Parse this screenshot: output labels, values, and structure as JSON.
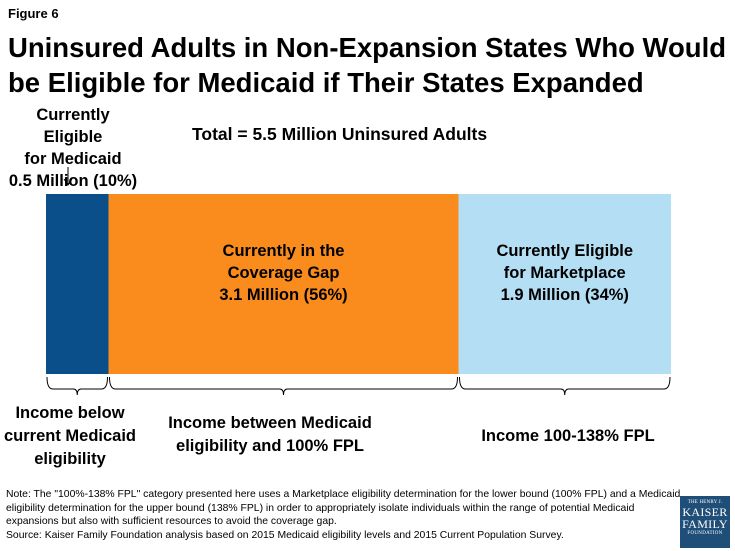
{
  "figure_label": "Figure 6",
  "title": "Uninsured Adults in Non-Expansion States Who Would be Eligible for Medicaid if Their States Expanded",
  "total_label": "Total = 5.5 Million Uninsured Adults",
  "annotation_left": [
    "Currently Eligible",
    "for Medicaid",
    "0.5 Million (10%)"
  ],
  "note": "Note: The \"100%-138% FPL\" category presented here uses a Marketplace eligibility determination for the lower bound (100% FPL) and a Medicaid eligibility determination for the upper bound (138% FPL) in order to appropriately isolate individuals within the range of potential Medicaid expansions but also with sufficient resources to avoid the coverage gap.",
  "source": "Source: Kaiser Family Foundation analysis based on 2015 Medicaid eligibility levels and 2015 Current Population Survey.",
  "logo": {
    "line1": "THE HENRY J.",
    "line2": "KAISER",
    "line3": "FAMILY",
    "line4": "FOUNDATION"
  },
  "chart_data": {
    "type": "bar",
    "orientation": "horizontal-stacked",
    "total_millions": 5.5,
    "segments": [
      {
        "key": "medicaid",
        "value_millions": 0.5,
        "percent": 10,
        "color": "#0b4f8a",
        "label_lines": [],
        "bracket_label_lines": [
          "Income below",
          "current Medicaid",
          "eligibility"
        ]
      },
      {
        "key": "gap",
        "value_millions": 3.1,
        "percent": 56,
        "color": "#f98c1c",
        "label_lines": [
          "Currently in the",
          "Coverage Gap",
          "3.1 Million (56%)"
        ],
        "bracket_label_lines": [
          "Income between Medicaid",
          "eligibility and 100% FPL"
        ]
      },
      {
        "key": "marketplace",
        "value_millions": 1.9,
        "percent": 34,
        "color": "#b4def3",
        "label_lines": [
          "Currently Eligible",
          "for Marketplace",
          "1.9 Million (34%)"
        ],
        "bracket_label_lines": [
          "Income 100-138% FPL"
        ]
      }
    ]
  }
}
